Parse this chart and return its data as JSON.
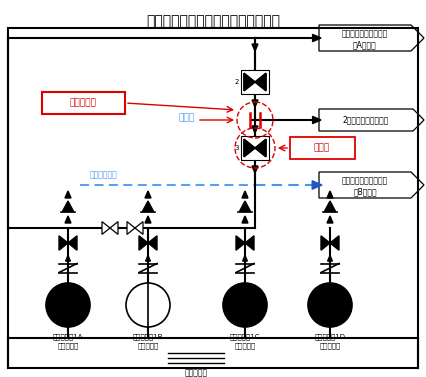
{
  "title": "伊方発電所１号機　海水系統概略図",
  "bg_color": "#ffffff",
  "pump_labels": [
    [
      "海水ポンプ1A",
      "（停止中）"
    ],
    [
      "海水ポンプ1B",
      "（運転中）"
    ],
    [
      "海水ポンプ1C",
      "（隔離中）"
    ],
    [
      "海水ポンプ1D",
      "（隔離中）"
    ]
  ],
  "label_A_line1": "原子炉補機冷却用海水",
  "label_A_line2": "（A系統）",
  "label_2ji": "2次系補機冷却用海水",
  "label_B_line1": "原子炉補機冷却用海水",
  "label_B_line2": "（B系統）",
  "label_mizuhari": "水張りライン",
  "label_tenken": "点検中",
  "label_toukaben": "当該弁",
  "label_morei": "漏えい箇所",
  "label_pit": "取水ピット",
  "black": "#000000",
  "red": "#dd0000",
  "dblue": "#2255cc",
  "lblue": "#4499ee"
}
